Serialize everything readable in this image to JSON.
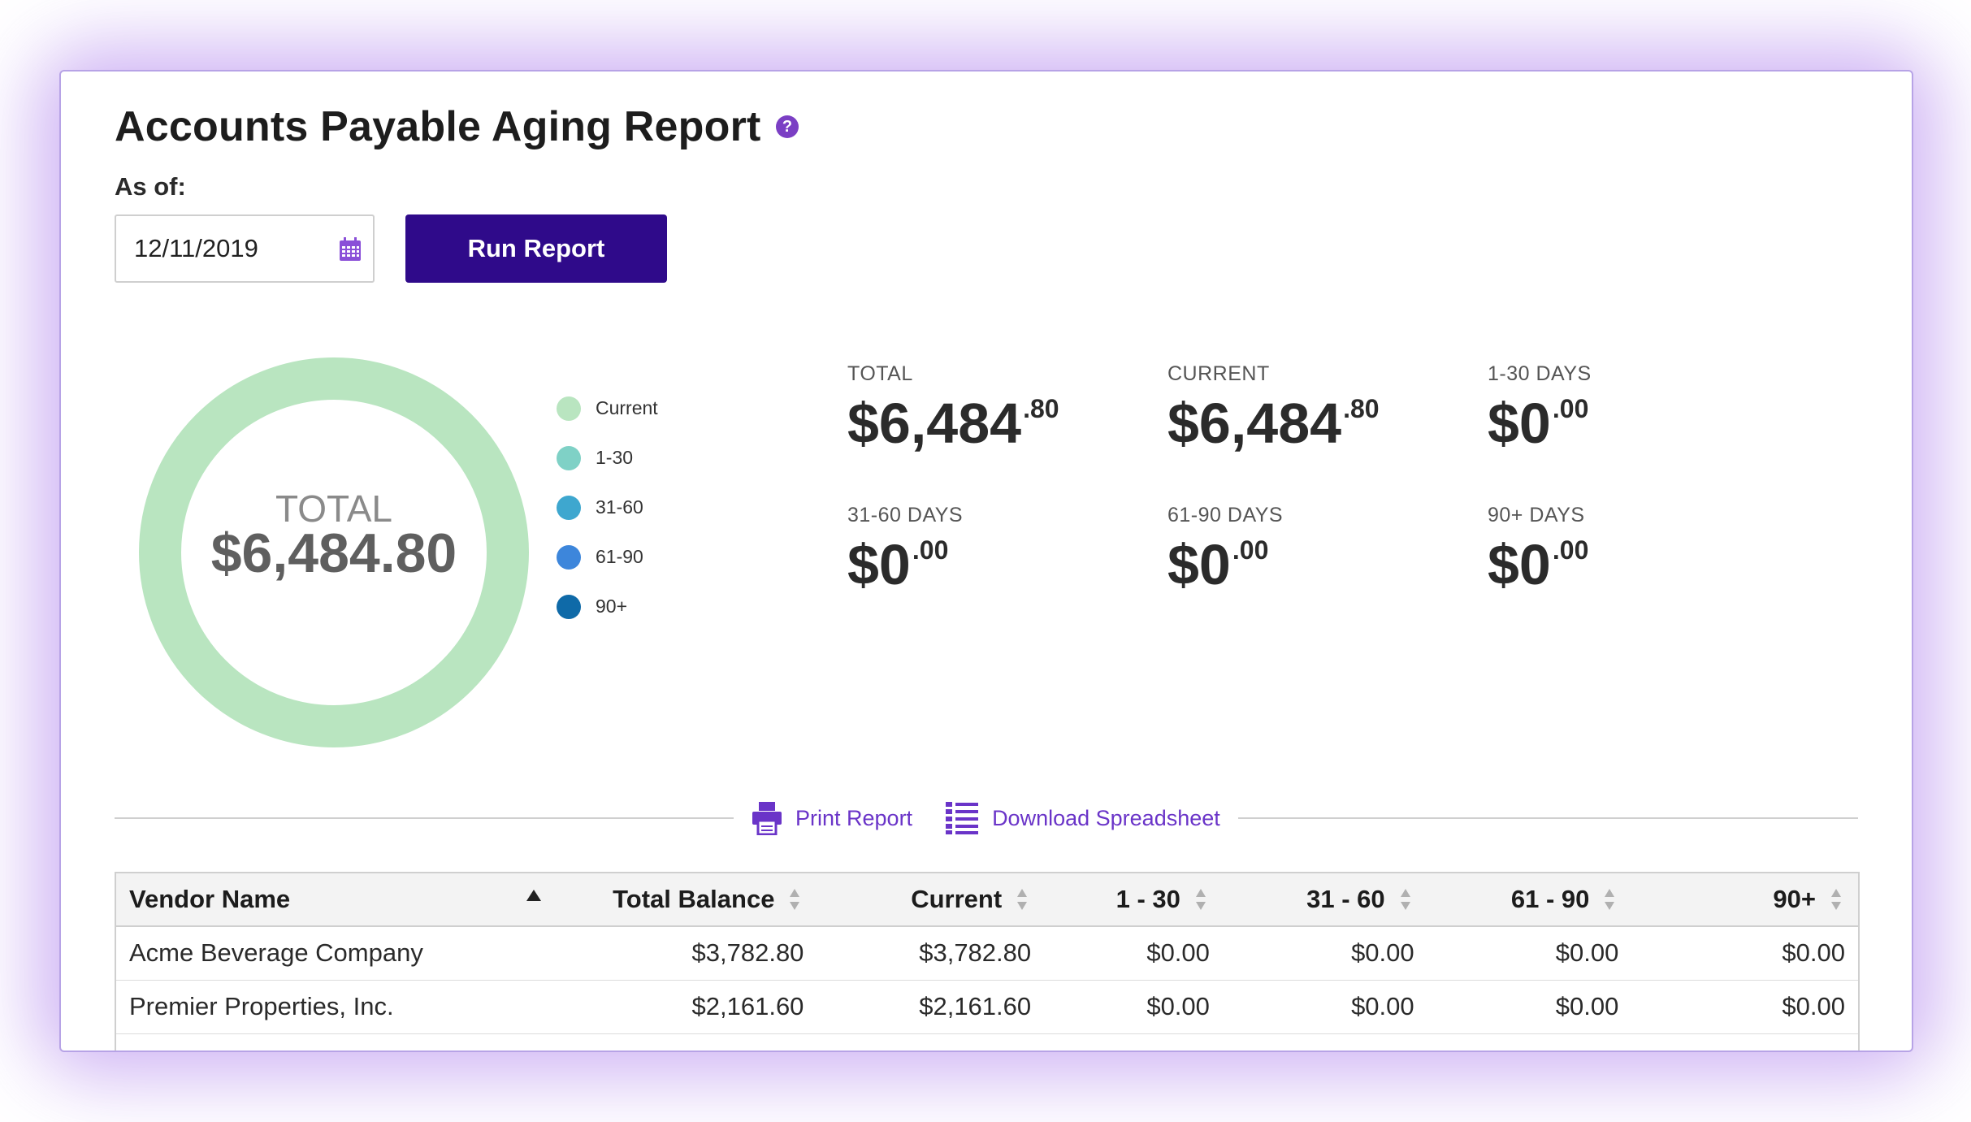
{
  "page": {
    "title": "Accounts Payable Aging Report",
    "help_icon": "question-circle-icon",
    "as_of_label": "As of:",
    "date_value": "12/11/2019",
    "run_button": "Run Report"
  },
  "chart_data": {
    "type": "pie",
    "center_label": "TOTAL",
    "center_value": "$6,484.80",
    "categories": [
      "Current",
      "1-30",
      "31-60",
      "61-90",
      "90+"
    ],
    "values": [
      6484.8,
      0,
      0,
      0,
      0
    ],
    "colors": [
      "#b9e5c0",
      "#7fd1c6",
      "#3ea7cf",
      "#3d86db",
      "#0f6aa8"
    ]
  },
  "stats": [
    {
      "label": "TOTAL",
      "dollars": "$6,484",
      "cents": ".80"
    },
    {
      "label": "CURRENT",
      "dollars": "$6,484",
      "cents": ".80"
    },
    {
      "label": "1-30 DAYS",
      "dollars": "$0",
      "cents": ".00"
    },
    {
      "label": "31-60 DAYS",
      "dollars": "$0",
      "cents": ".00"
    },
    {
      "label": "61-90 DAYS",
      "dollars": "$0",
      "cents": ".00"
    },
    {
      "label": "90+ DAYS",
      "dollars": "$0",
      "cents": ".00"
    }
  ],
  "actions": {
    "print": "Print Report",
    "download": "Download Spreadsheet"
  },
  "table": {
    "columns": [
      "Vendor Name",
      "Total Balance",
      "Current",
      "1 - 30",
      "31 - 60",
      "61 - 90",
      "90+"
    ],
    "rows": [
      [
        "Acme Beverage Company",
        "$3,782.80",
        "$3,782.80",
        "$0.00",
        "$0.00",
        "$0.00",
        "$0.00"
      ],
      [
        "Premier Properties, Inc.",
        "$2,161.60",
        "$2,161.60",
        "$0.00",
        "$0.00",
        "$0.00",
        "$0.00"
      ]
    ]
  },
  "colors": {
    "accent": "#6a34c8",
    "button": "#2f0a8a",
    "border": "#b7a3e6"
  }
}
